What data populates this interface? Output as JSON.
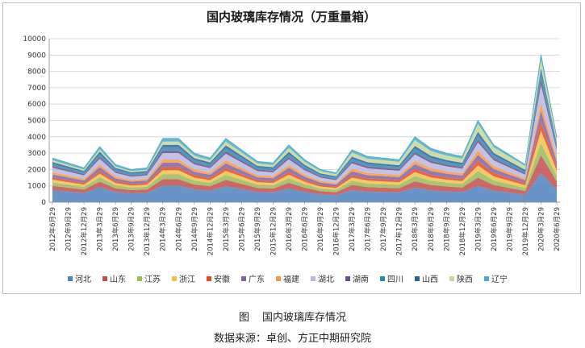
{
  "chart_data": {
    "type": "area",
    "title": "国内玻璃库存情况（万重量箱）",
    "stacked": true,
    "ylim": [
      0,
      10000
    ],
    "yticks": [
      0,
      1000,
      2000,
      3000,
      4000,
      5000,
      6000,
      7000,
      8000,
      9000,
      10000
    ],
    "grid": "horizontal",
    "legend_position": "bottom",
    "x_tick_labels": [
      "2012年6月29",
      "2012年9月29",
      "2012年12月29",
      "2013年3月29",
      "2013年6月29",
      "2013年9月29",
      "2013年12月29",
      "2014年3月29",
      "2014年6月29",
      "2014年9月29",
      "2014年12月29",
      "2015年3月29",
      "2015年6月29",
      "2015年9月29",
      "2015年12月29",
      "2016年3月29",
      "2016年6月29",
      "2016年9月29",
      "2016年12月29",
      "2017年3月29",
      "2017年6月29",
      "2017年9月29",
      "2017年12月29",
      "2018年3月29",
      "2018年6月29",
      "2018年9月29",
      "2018年12月29",
      "2019年3月29",
      "2019年6月29",
      "2019年9月29",
      "2019年12月29",
      "2020年3月29",
      "2020年6月29"
    ],
    "totals": [
      2700,
      2400,
      2100,
      3400,
      2300,
      2000,
      2100,
      3900,
      3900,
      3000,
      2700,
      3900,
      3200,
      2500,
      2400,
      3500,
      2600,
      2000,
      1800,
      3200,
      2800,
      2700,
      2600,
      4000,
      3300,
      3000,
      2800,
      5000,
      3500,
      2900,
      2300,
      9300,
      4100
    ],
    "series": [
      {
        "name": "河北",
        "color": "#4f81bd",
        "share": [
          0.27,
          0.27,
          0.27,
          0.27,
          0.27,
          0.27,
          0.27,
          0.26,
          0.26,
          0.26,
          0.26,
          0.25,
          0.25,
          0.25,
          0.25,
          0.24,
          0.24,
          0.24,
          0.24,
          0.23,
          0.23,
          0.23,
          0.23,
          0.22,
          0.22,
          0.22,
          0.22,
          0.2,
          0.2,
          0.2,
          0.2,
          0.19,
          0.19
        ]
      },
      {
        "name": "山东",
        "color": "#c0504d",
        "share": [
          0.1,
          0.1,
          0.1,
          0.1,
          0.1,
          0.1,
          0.1,
          0.1,
          0.1,
          0.1,
          0.1,
          0.1,
          0.1,
          0.1,
          0.1,
          0.1,
          0.1,
          0.1,
          0.1,
          0.1,
          0.1,
          0.1,
          0.1,
          0.1,
          0.1,
          0.1,
          0.1,
          0.1,
          0.1,
          0.1,
          0.1,
          0.12,
          0.12
        ]
      },
      {
        "name": "江苏",
        "color": "#9bbb59",
        "share": [
          0.08,
          0.08,
          0.08,
          0.08,
          0.08,
          0.08,
          0.08,
          0.08,
          0.08,
          0.08,
          0.08,
          0.08,
          0.08,
          0.08,
          0.08,
          0.08,
          0.08,
          0.08,
          0.08,
          0.08,
          0.08,
          0.08,
          0.08,
          0.08,
          0.08,
          0.08,
          0.08,
          0.08,
          0.08,
          0.08,
          0.08,
          0.08,
          0.08
        ]
      },
      {
        "name": "浙江",
        "color": "#f0c24b",
        "share": [
          0.06,
          0.06,
          0.06,
          0.06,
          0.06,
          0.06,
          0.06,
          0.06,
          0.06,
          0.06,
          0.06,
          0.06,
          0.06,
          0.06,
          0.06,
          0.06,
          0.06,
          0.06,
          0.06,
          0.06,
          0.06,
          0.06,
          0.06,
          0.06,
          0.06,
          0.06,
          0.06,
          0.07,
          0.07,
          0.07,
          0.07,
          0.08,
          0.08
        ]
      },
      {
        "name": "安徽",
        "color": "#e24a2b",
        "share": [
          0.05,
          0.05,
          0.05,
          0.05,
          0.05,
          0.05,
          0.05,
          0.05,
          0.05,
          0.05,
          0.05,
          0.05,
          0.05,
          0.05,
          0.05,
          0.05,
          0.05,
          0.05,
          0.05,
          0.05,
          0.05,
          0.05,
          0.05,
          0.05,
          0.05,
          0.05,
          0.05,
          0.06,
          0.06,
          0.06,
          0.06,
          0.06,
          0.06
        ]
      },
      {
        "name": "广东",
        "color": "#8064a2",
        "share": [
          0.07,
          0.07,
          0.07,
          0.07,
          0.07,
          0.07,
          0.07,
          0.07,
          0.07,
          0.07,
          0.07,
          0.07,
          0.07,
          0.07,
          0.07,
          0.07,
          0.07,
          0.07,
          0.07,
          0.07,
          0.07,
          0.07,
          0.07,
          0.07,
          0.07,
          0.07,
          0.07,
          0.07,
          0.07,
          0.07,
          0.07,
          0.07,
          0.07
        ]
      },
      {
        "name": "福建",
        "color": "#f79646",
        "share": [
          0.05,
          0.05,
          0.05,
          0.05,
          0.05,
          0.05,
          0.05,
          0.05,
          0.05,
          0.05,
          0.05,
          0.05,
          0.05,
          0.05,
          0.05,
          0.05,
          0.05,
          0.05,
          0.05,
          0.05,
          0.05,
          0.05,
          0.05,
          0.05,
          0.05,
          0.05,
          0.05,
          0.05,
          0.05,
          0.05,
          0.05,
          0.05,
          0.05
        ]
      },
      {
        "name": "湖北",
        "color": "#b7b8de",
        "share": [
          0.1,
          0.1,
          0.1,
          0.1,
          0.1,
          0.1,
          0.1,
          0.1,
          0.1,
          0.1,
          0.1,
          0.1,
          0.1,
          0.1,
          0.1,
          0.1,
          0.1,
          0.1,
          0.1,
          0.1,
          0.1,
          0.1,
          0.1,
          0.1,
          0.1,
          0.1,
          0.1,
          0.1,
          0.1,
          0.1,
          0.1,
          0.12,
          0.12
        ]
      },
      {
        "name": "湖南",
        "color": "#6a4c93",
        "share": [
          0.04,
          0.04,
          0.04,
          0.04,
          0.04,
          0.04,
          0.04,
          0.04,
          0.04,
          0.04,
          0.04,
          0.04,
          0.04,
          0.04,
          0.04,
          0.04,
          0.04,
          0.04,
          0.04,
          0.04,
          0.04,
          0.04,
          0.04,
          0.04,
          0.04,
          0.04,
          0.04,
          0.04,
          0.04,
          0.04,
          0.04,
          0.04,
          0.04
        ]
      },
      {
        "name": "四川",
        "color": "#2e8ba6",
        "share": [
          0.05,
          0.05,
          0.05,
          0.05,
          0.05,
          0.05,
          0.05,
          0.05,
          0.05,
          0.05,
          0.05,
          0.05,
          0.05,
          0.05,
          0.05,
          0.05,
          0.05,
          0.05,
          0.05,
          0.05,
          0.05,
          0.05,
          0.05,
          0.05,
          0.05,
          0.05,
          0.05,
          0.05,
          0.05,
          0.05,
          0.05,
          0.04,
          0.04
        ]
      },
      {
        "name": "山西",
        "color": "#2a5fa5",
        "share": [
          0.04,
          0.04,
          0.04,
          0.04,
          0.04,
          0.04,
          0.04,
          0.04,
          0.04,
          0.04,
          0.04,
          0.04,
          0.04,
          0.04,
          0.04,
          0.04,
          0.04,
          0.04,
          0.04,
          0.04,
          0.04,
          0.04,
          0.04,
          0.04,
          0.04,
          0.04,
          0.04,
          0.04,
          0.04,
          0.04,
          0.04,
          0.03,
          0.03
        ]
      },
      {
        "name": "陕西",
        "color": "#c3d69b",
        "share": [
          0.04,
          0.04,
          0.04,
          0.04,
          0.04,
          0.04,
          0.04,
          0.05,
          0.05,
          0.05,
          0.05,
          0.06,
          0.06,
          0.06,
          0.06,
          0.07,
          0.07,
          0.07,
          0.07,
          0.08,
          0.08,
          0.08,
          0.08,
          0.09,
          0.09,
          0.09,
          0.09,
          0.1,
          0.1,
          0.1,
          0.1,
          0.06,
          0.06
        ]
      },
      {
        "name": "辽宁",
        "color": "#4bacc6",
        "share": [
          0.05,
          0.05,
          0.05,
          0.05,
          0.05,
          0.05,
          0.05,
          0.05,
          0.05,
          0.05,
          0.05,
          0.05,
          0.05,
          0.05,
          0.05,
          0.05,
          0.05,
          0.05,
          0.05,
          0.05,
          0.05,
          0.05,
          0.05,
          0.05,
          0.05,
          0.05,
          0.05,
          0.04,
          0.04,
          0.04,
          0.04,
          0.03,
          0.03
        ]
      }
    ]
  },
  "caption": {
    "figure_label": "图",
    "figure_title": "国内玻璃库存情况"
  },
  "source": "数据来源：卓创、方正中期研究院"
}
